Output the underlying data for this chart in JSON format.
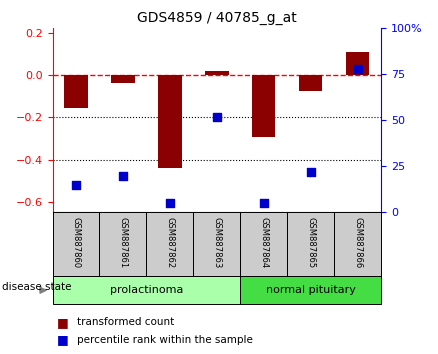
{
  "title": "GDS4859 / 40785_g_at",
  "samples": [
    "GSM887860",
    "GSM887861",
    "GSM887862",
    "GSM887863",
    "GSM887864",
    "GSM887865",
    "GSM887866"
  ],
  "red_values": [
    -0.155,
    -0.04,
    -0.44,
    0.018,
    -0.295,
    -0.075,
    0.11
  ],
  "blue_percentiles": [
    15,
    20,
    5,
    52,
    5,
    22,
    78
  ],
  "ylim_left": [
    -0.65,
    0.22
  ],
  "ylim_right": [
    0,
    100
  ],
  "right_ticks": [
    0,
    25,
    50,
    75,
    100
  ],
  "right_tick_labels": [
    "0",
    "25",
    "50",
    "75",
    "100%"
  ],
  "left_ticks": [
    -0.6,
    -0.4,
    -0.2,
    0.0,
    0.2
  ],
  "hline_y": 0.0,
  "dotted_lines": [
    -0.2,
    -0.4
  ],
  "disease_groups": [
    {
      "label": "prolactinoma",
      "start": 0,
      "end": 4,
      "color": "#aaffaa"
    },
    {
      "label": "normal pituitary",
      "start": 4,
      "end": 7,
      "color": "#44dd44"
    }
  ],
  "disease_state_label": "disease state",
  "legend_red": "transformed count",
  "legend_blue": "percentile rank within the sample",
  "bar_color": "#8b0000",
  "blue_color": "#0000cc",
  "bar_width": 0.5,
  "blue_marker_size": 30,
  "sample_box_color": "#cccccc",
  "sample_box_edge": "#000000"
}
